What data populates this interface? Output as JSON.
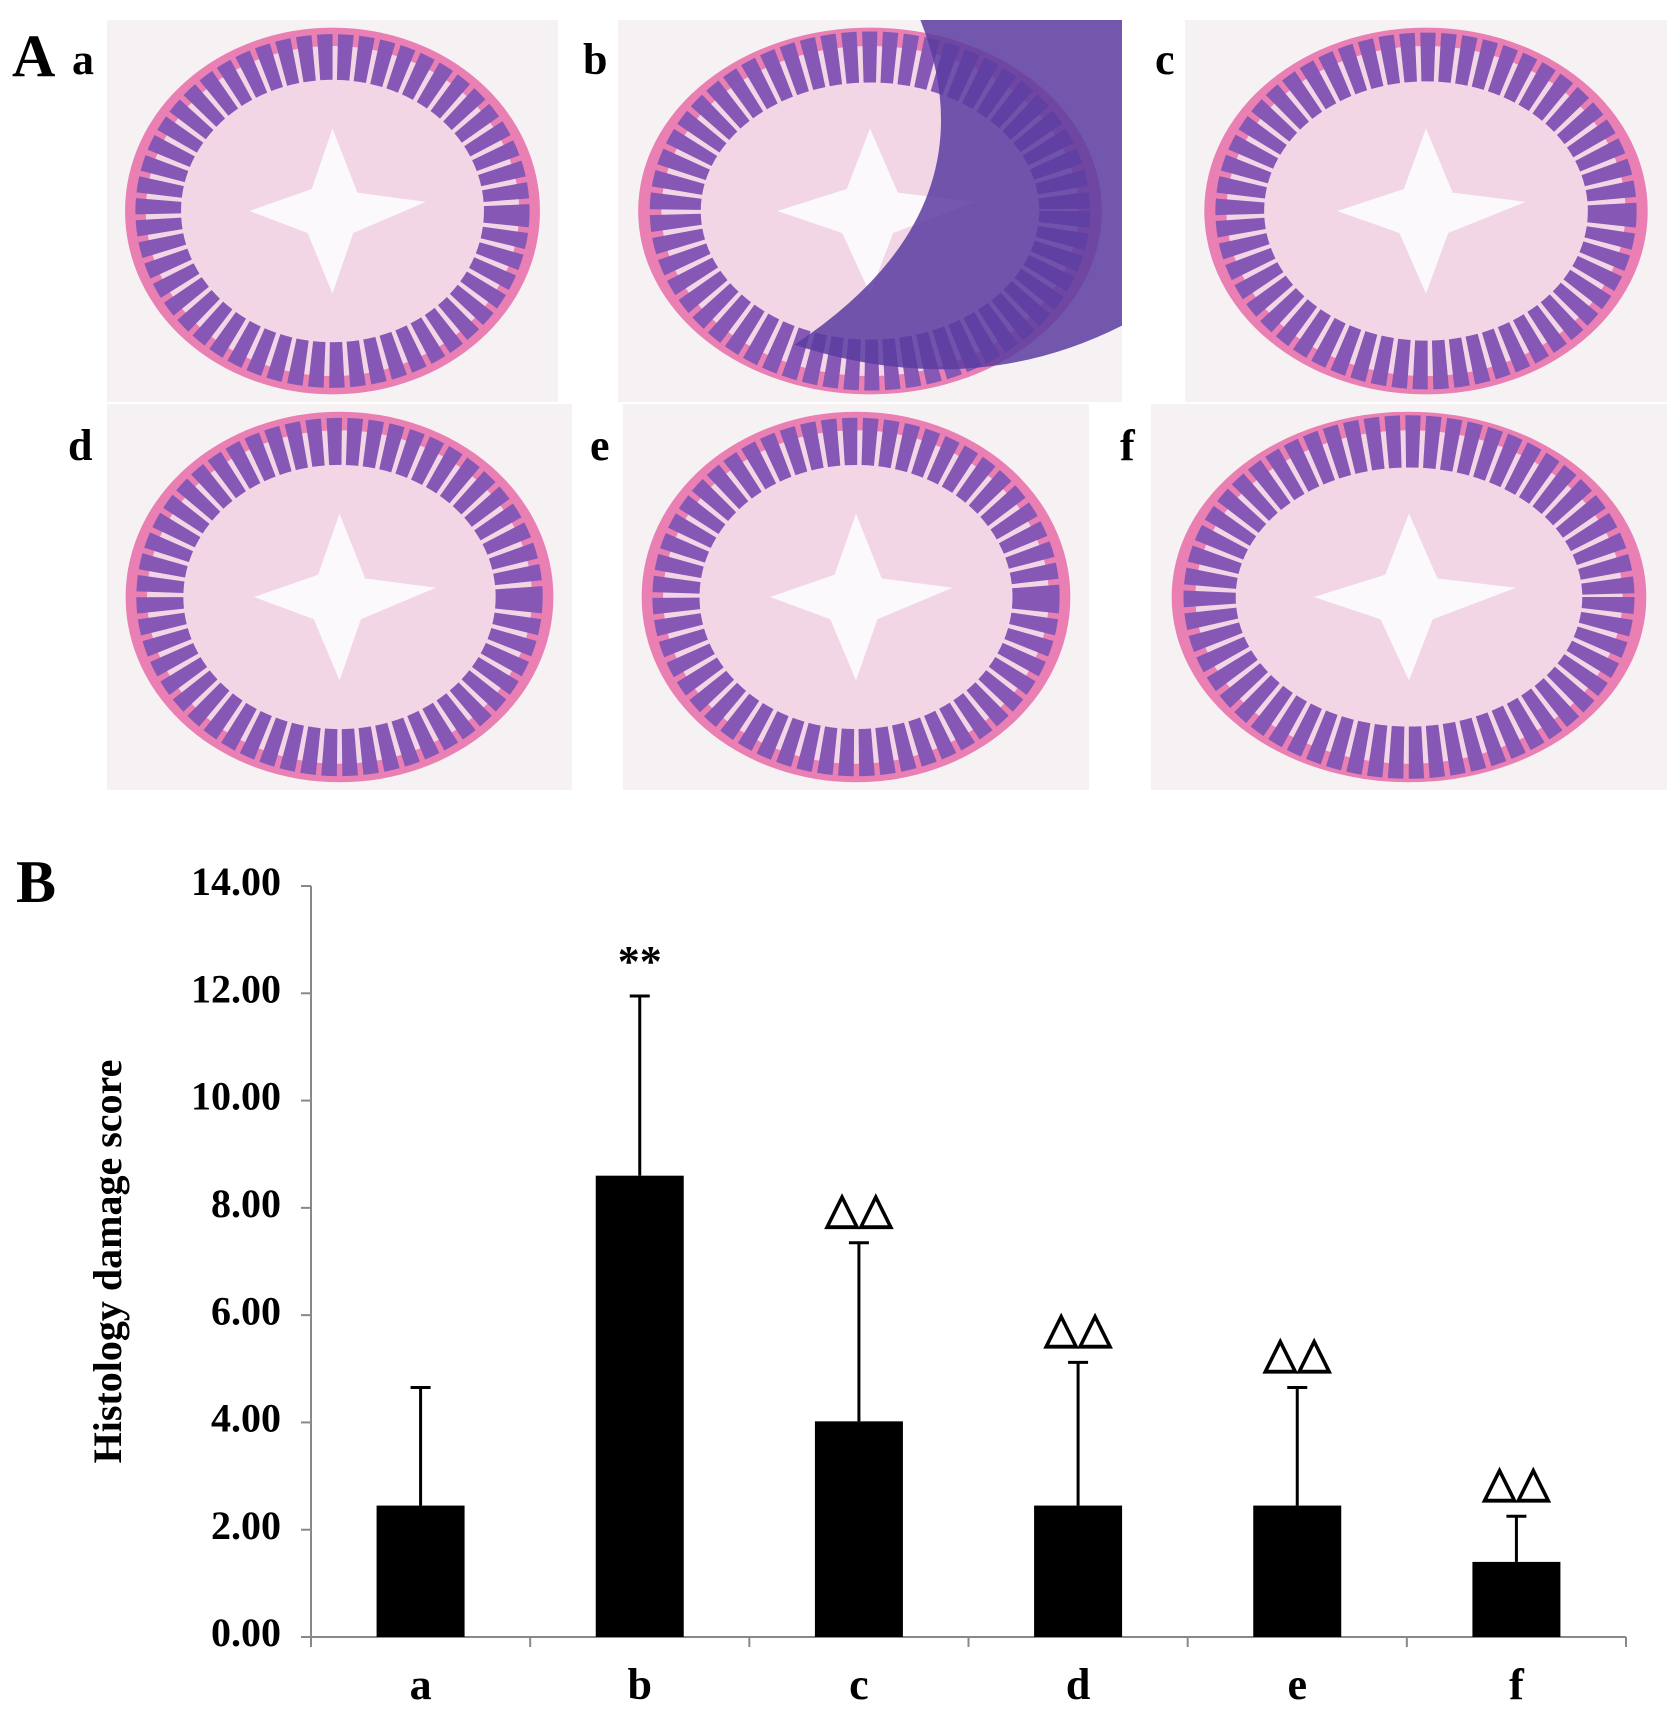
{
  "figure": {
    "panel_a": {
      "label": "A",
      "images": [
        "a",
        "b",
        "c",
        "d",
        "e",
        "f"
      ]
    },
    "panel_b": {
      "label": "B"
    }
  },
  "chart_data": {
    "type": "bar",
    "y_label": "Histology damage score",
    "categories": [
      "a",
      "b",
      "c",
      "d",
      "e",
      "f"
    ],
    "values": [
      2.45,
      8.6,
      4.02,
      2.45,
      2.45,
      1.4
    ],
    "errors": [
      2.2,
      3.35,
      3.33,
      2.67,
      2.2,
      0.85
    ],
    "color": "#000000",
    "ylim": [
      0,
      14
    ],
    "yticks": [
      {
        "value": 0,
        "label": "0.00"
      },
      {
        "value": 2,
        "label": "2.00"
      },
      {
        "value": 4,
        "label": "4.00"
      },
      {
        "value": 6,
        "label": "6.00"
      },
      {
        "value": 8,
        "label": "8.00"
      },
      {
        "value": 10,
        "label": "10.00"
      },
      {
        "value": 12,
        "label": "12.00"
      },
      {
        "value": 14,
        "label": "14.00"
      }
    ],
    "annotations": [
      {
        "category": "b",
        "text": "**"
      },
      {
        "category": "c",
        "text": "△△"
      },
      {
        "category": "d",
        "text": "△△"
      },
      {
        "category": "e",
        "text": "△△"
      },
      {
        "category": "f",
        "text": "△△"
      }
    ]
  }
}
